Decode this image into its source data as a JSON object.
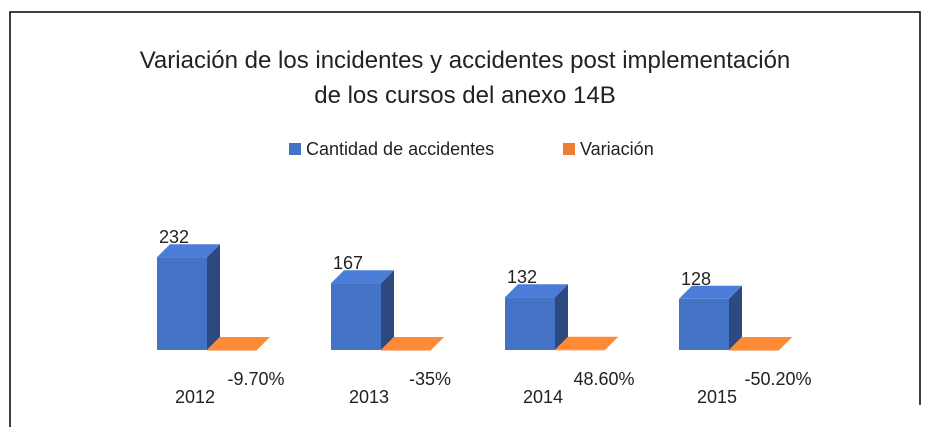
{
  "chart_data": {
    "type": "bar3d",
    "title": "Variación de los incidentes y accidentes post implementación de los cursos del anexo 14B",
    "categories": [
      "2012",
      "2013",
      "2014",
      "2015"
    ],
    "series": [
      {
        "name": "Cantidad de accidentes",
        "color": "#4472c4",
        "values": [
          232,
          167,
          132,
          128
        ]
      },
      {
        "name": "Variación",
        "color": "#ed7d31",
        "values": [
          -0.097,
          -0.35,
          0.486,
          -0.502
        ],
        "value_labels": [
          "-9.70%",
          "-35%",
          "48.60%",
          "-50.20%"
        ]
      }
    ],
    "legend": "top"
  }
}
